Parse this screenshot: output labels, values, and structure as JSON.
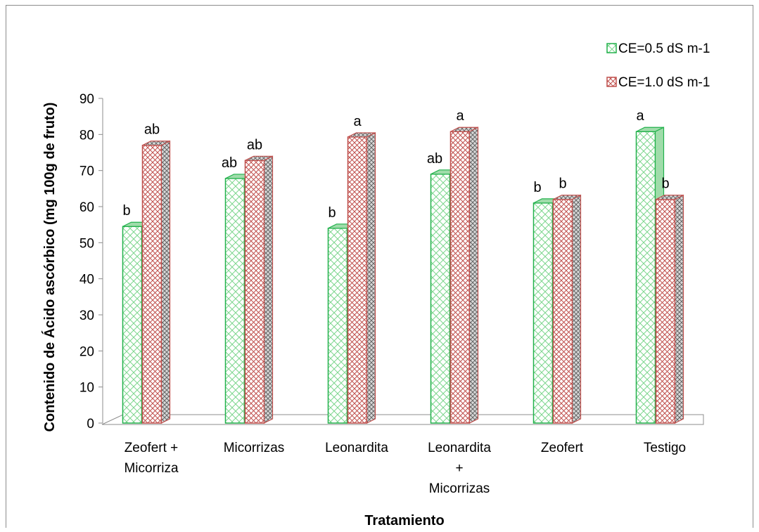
{
  "chart_data": {
    "type": "bar",
    "xlabel": "Tratamiento",
    "ylabel": "Contenido de Ácido ascórbico (mg 100g de fruto)",
    "ylim": [
      0,
      90
    ],
    "yticks": [
      0,
      10,
      20,
      30,
      40,
      50,
      60,
      70,
      80,
      90
    ],
    "categories": [
      [
        "Zeofert +",
        "Micorriza"
      ],
      [
        "Micorrizas"
      ],
      [
        "Leonardita"
      ],
      [
        "Leonardita",
        "+",
        "Micorrizas"
      ],
      [
        "Zeofert"
      ],
      [
        "Testigo"
      ]
    ],
    "series": [
      {
        "name": "CE=0.5 dS m-1",
        "color": "#22b14c",
        "values": [
          54.5,
          67.8,
          54.0,
          69.0,
          61.0,
          80.8
        ],
        "labels": [
          "b",
          "ab",
          "b",
          "ab",
          "b",
          "a"
        ]
      },
      {
        "name": "CE=1.0 dS m-1",
        "color": "#c0504d",
        "values": [
          77.0,
          72.8,
          79.3,
          80.8,
          62.0,
          62.0
        ],
        "labels": [
          "ab",
          "ab",
          "a",
          "a",
          "b",
          "b"
        ]
      }
    ],
    "grid": false,
    "legend_position": "top-right"
  }
}
